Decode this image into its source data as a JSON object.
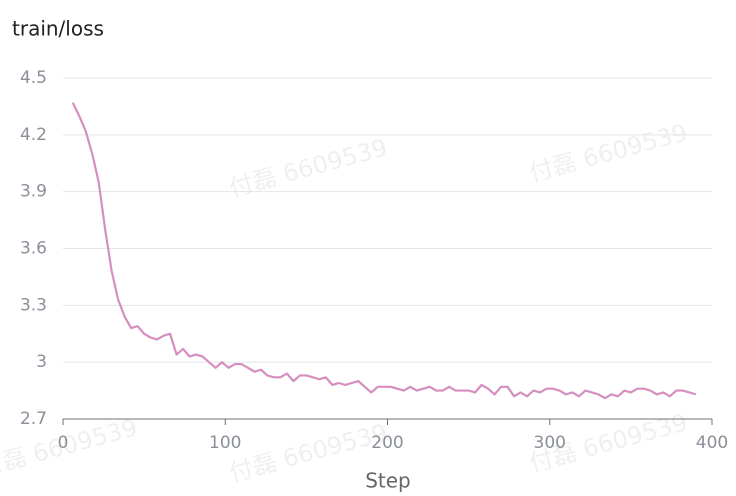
{
  "chart_data": {
    "type": "line",
    "title": "train/loss",
    "xlabel": "Step",
    "watermark": "付磊 6609539",
    "x": [
      6,
      10,
      14,
      18,
      22,
      26,
      30,
      34,
      38,
      42,
      46,
      50,
      54,
      58,
      62,
      66,
      70,
      74,
      78,
      82,
      86,
      90,
      94,
      98,
      102,
      106,
      110,
      114,
      118,
      122,
      126,
      130,
      134,
      138,
      142,
      146,
      150,
      154,
      158,
      162,
      166,
      170,
      174,
      178,
      182,
      186,
      190,
      194,
      198,
      202,
      206,
      210,
      214,
      218,
      222,
      226,
      230,
      234,
      238,
      242,
      246,
      250,
      254,
      258,
      262,
      266,
      270,
      274,
      278,
      282,
      286,
      290,
      294,
      298,
      302,
      306,
      310,
      314,
      318,
      322,
      326,
      330,
      334,
      338,
      342,
      346,
      350,
      354,
      358,
      362,
      366,
      370,
      374,
      378,
      382,
      386,
      390
    ],
    "series": [
      {
        "color": "#d48fbf",
        "values": [
          4.37,
          4.3,
          4.22,
          4.1,
          3.95,
          3.7,
          3.48,
          3.33,
          3.24,
          3.18,
          3.19,
          3.15,
          3.13,
          3.12,
          3.14,
          3.15,
          3.04,
          3.07,
          3.03,
          3.04,
          3.03,
          3.0,
          2.97,
          3.0,
          2.97,
          2.99,
          2.99,
          2.97,
          2.95,
          2.96,
          2.93,
          2.92,
          2.92,
          2.94,
          2.9,
          2.93,
          2.93,
          2.92,
          2.91,
          2.92,
          2.88,
          2.89,
          2.88,
          2.89,
          2.9,
          2.87,
          2.84,
          2.87,
          2.87,
          2.87,
          2.86,
          2.85,
          2.87,
          2.85,
          2.86,
          2.87,
          2.85,
          2.85,
          2.87,
          2.85,
          2.85,
          2.85,
          2.84,
          2.88,
          2.86,
          2.83,
          2.87,
          2.87,
          2.82,
          2.84,
          2.82,
          2.85,
          2.84,
          2.86,
          2.86,
          2.85,
          2.83,
          2.84,
          2.82,
          2.85,
          2.84,
          2.83,
          2.81,
          2.83,
          2.82,
          2.85,
          2.84,
          2.86,
          2.86,
          2.85,
          2.83,
          2.84,
          2.82,
          2.85,
          2.85,
          2.84,
          2.83
        ]
      }
    ],
    "xlim": [
      0,
      400
    ],
    "xticks": [
      0,
      100,
      200,
      300,
      400
    ],
    "ylim": [
      2.7,
      4.5
    ],
    "yticks": [
      2.7,
      3,
      3.3,
      3.6,
      3.9,
      4.2,
      4.5
    ],
    "grid": true
  }
}
